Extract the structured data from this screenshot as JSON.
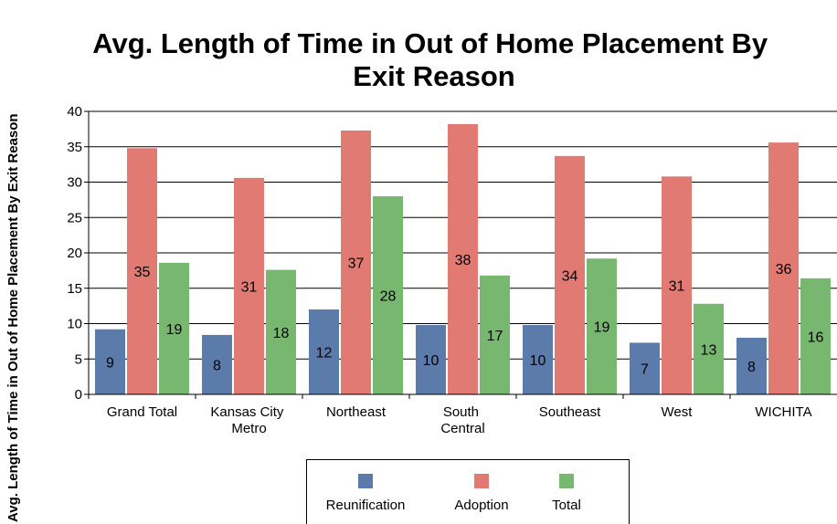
{
  "chart_data": {
    "type": "bar",
    "title": "Avg. Length of Time in Out of Home Placement By Exit Reason",
    "y_label": "Avg. Length of Time in Out of Home Placement By Exit Reason",
    "categories": [
      "Grand Total",
      "Kansas City Metro",
      "Northeast",
      "South Central",
      "Southeast",
      "West",
      "WICHITA"
    ],
    "series": [
      {
        "name": "Reunification",
        "color": "#5b7bab",
        "values": [
          9.2,
          8.4,
          12.0,
          9.8,
          9.8,
          7.3,
          8.0
        ],
        "value_labels": [
          "9",
          "8",
          "12",
          "10",
          "10",
          "7",
          "8"
        ]
      },
      {
        "name": "Adoption",
        "color": "#e07a72",
        "values": [
          34.8,
          30.6,
          37.3,
          38.2,
          33.7,
          30.8,
          35.6
        ],
        "value_labels": [
          "35",
          "31",
          "37",
          "38",
          "34",
          "31",
          "36"
        ]
      },
      {
        "name": "Total",
        "color": "#77b76f",
        "values": [
          18.6,
          17.6,
          28.0,
          16.8,
          19.2,
          12.8,
          16.4
        ],
        "value_labels": [
          "19",
          "18",
          "28",
          "17",
          "19",
          "13",
          "16"
        ]
      }
    ],
    "ylim": [
      0,
      40
    ],
    "yticks": [
      0,
      5,
      10,
      15,
      20,
      25,
      30,
      35,
      40
    ],
    "grid": true
  }
}
